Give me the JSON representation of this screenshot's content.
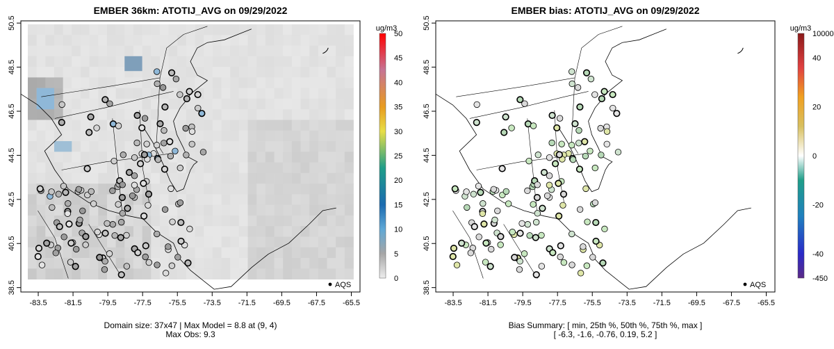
{
  "chart_data": [
    {
      "type": "map",
      "title": "EMBER 36km: ATOTIJ_AVG on 09/29/2022",
      "x_ticks": [
        "-83.5",
        "-81.5",
        "-79.5",
        "-77.5",
        "-75.5",
        "-73.5",
        "-71.5",
        "-69.5",
        "-67.5",
        "-65.5"
      ],
      "y_ticks": [
        "38.5",
        "40.5",
        "42.5",
        "44.5",
        "46.5",
        "48.5",
        "50.5"
      ],
      "xlim": [
        -84.5,
        -65.0
      ],
      "ylim": [
        38.3,
        50.6
      ],
      "legend_label": "AQS",
      "colorbar": {
        "unit": "ug/m3",
        "range": [
          0,
          50
        ],
        "ticks": [
          "0",
          "5",
          "10",
          "15",
          "20",
          "25",
          "30",
          "35",
          "40",
          "45",
          "50"
        ]
      },
      "caption_lines": [
        "Domain size: 37x47 | Max Model = 8.8 at (9, 4)",
        "Max Obs: 9.3"
      ],
      "stats": {
        "domain_size": "37x47",
        "max_model": 8.8,
        "max_model_cell": "(9, 4)",
        "max_obs": 9.3
      }
    },
    {
      "type": "map",
      "title": "EMBER bias: ATOTIJ_AVG on 09/29/2022",
      "x_ticks": [
        "-83.5",
        "-81.5",
        "-79.5",
        "-77.5",
        "-75.5",
        "-73.5",
        "-71.5",
        "-69.5",
        "-67.5",
        "-65.5"
      ],
      "y_ticks": [
        "38.5",
        "40.5",
        "42.5",
        "44.5",
        "46.5",
        "48.5",
        "50.5"
      ],
      "xlim": [
        -84.5,
        -65.0
      ],
      "ylim": [
        38.3,
        50.6
      ],
      "legend_label": "AQS",
      "colorbar": {
        "unit": "ug/m3",
        "ticks": [
          "10000",
          "40",
          "20",
          "0",
          "-20",
          "-40",
          "-450"
        ]
      },
      "caption_lines": [
        "Bias Summary: [ min, 25th %, 50th %, 75th %, max ]",
        "[ -6.3,   -1.6,   -0.76,   0.19,   5.2 ]"
      ],
      "stats": {
        "min": -6.3,
        "p25": -1.6,
        "p50": -0.76,
        "p75": 0.19,
        "max": 5.2
      }
    }
  ]
}
